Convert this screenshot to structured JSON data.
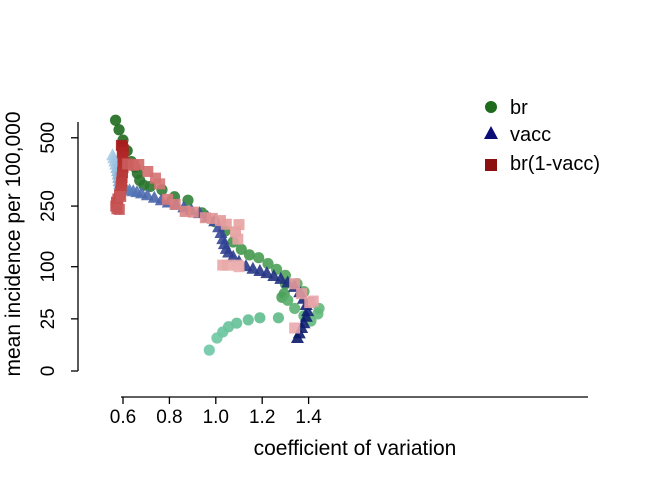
{
  "chart_data": {
    "type": "scatter",
    "xlabel": "coefficient of variation",
    "ylabel": "mean incidence per 100,000",
    "xlim": [
      0.52,
      1.46
    ],
    "y_scale": "sqrt",
    "ylim": [
      0,
      620
    ],
    "x_ticks": [
      {
        "value": 0.6,
        "label": "0.6"
      },
      {
        "value": 0.8,
        "label": "0.8"
      },
      {
        "value": 1.0,
        "label": "1.0"
      },
      {
        "value": 1.2,
        "label": "1.2"
      },
      {
        "value": 1.4,
        "label": "1.4"
      }
    ],
    "y_ticks": [
      {
        "value": 0,
        "label": "0"
      },
      {
        "value": 25,
        "label": "25"
      },
      {
        "value": 100,
        "label": "100"
      },
      {
        "value": 250,
        "label": "250"
      },
      {
        "value": 500,
        "label": "500"
      }
    ],
    "legend": {
      "placement": "top-right"
    },
    "grid": false,
    "series": [
      {
        "name": "br",
        "marker": "circle",
        "legend_color": "#1e6b1e",
        "points": [
          {
            "x": 0.568,
            "y": 578,
            "c": "#1e6b1e"
          },
          {
            "x": 0.583,
            "y": 535,
            "c": "#1e6b1e"
          },
          {
            "x": 0.6,
            "y": 490,
            "c": "#1e6b1e"
          },
          {
            "x": 0.618,
            "y": 446,
            "c": "#1e6b1e"
          },
          {
            "x": 0.636,
            "y": 403,
            "c": "#226f22"
          },
          {
            "x": 0.652,
            "y": 382,
            "c": "#226f22"
          },
          {
            "x": 0.662,
            "y": 359,
            "c": "#266f26"
          },
          {
            "x": 0.672,
            "y": 334,
            "c": "#2a732a"
          },
          {
            "x": 0.69,
            "y": 317,
            "c": "#2a752f"
          },
          {
            "x": 0.718,
            "y": 313,
            "c": "#2d782f"
          },
          {
            "x": 0.768,
            "y": 302,
            "c": "#2f7c34"
          },
          {
            "x": 0.822,
            "y": 279,
            "c": "#318036"
          },
          {
            "x": 0.88,
            "y": 268,
            "c": "#338339"
          },
          {
            "x": 0.94,
            "y": 230,
            "c": "#36873c"
          },
          {
            "x": 0.995,
            "y": 205,
            "c": "#3a8d42"
          },
          {
            "x": 1.04,
            "y": 180,
            "c": "#3c9145"
          },
          {
            "x": 1.075,
            "y": 153,
            "c": "#3f9448"
          },
          {
            "x": 1.11,
            "y": 136,
            "c": "#42974b"
          },
          {
            "x": 1.145,
            "y": 124,
            "c": "#45994d"
          },
          {
            "x": 1.185,
            "y": 118,
            "c": "#489c51"
          },
          {
            "x": 1.225,
            "y": 106,
            "c": "#4b9f55"
          },
          {
            "x": 1.262,
            "y": 95,
            "c": "#4ea259"
          },
          {
            "x": 1.3,
            "y": 84,
            "c": "#52a55c"
          },
          {
            "x": 1.35,
            "y": 70,
            "c": "#55a860"
          },
          {
            "x": 1.38,
            "y": 58,
            "c": "#58ab63"
          },
          {
            "x": 1.3,
            "y": 70,
            "c": "#4aa05a"
          },
          {
            "x": 1.295,
            "y": 55,
            "c": "#4aa05a"
          },
          {
            "x": 1.285,
            "y": 50,
            "c": "#4aa05a"
          },
          {
            "x": 1.31,
            "y": 46,
            "c": "#56ad6a"
          },
          {
            "x": 1.34,
            "y": 36,
            "c": "#5cb272"
          },
          {
            "x": 1.38,
            "y": 28,
            "c": "#5fb577"
          },
          {
            "x": 1.41,
            "y": 23,
            "c": "#62b87c"
          },
          {
            "x": 1.44,
            "y": 30,
            "c": "#62b87c"
          },
          {
            "x": 1.445,
            "y": 36,
            "c": "#62b87c"
          },
          {
            "x": 1.27,
            "y": 26,
            "c": "#5fba88"
          },
          {
            "x": 1.19,
            "y": 26,
            "c": "#61bc8e"
          },
          {
            "x": 1.14,
            "y": 24,
            "c": "#63be92"
          },
          {
            "x": 1.09,
            "y": 21,
            "c": "#65c096"
          },
          {
            "x": 1.055,
            "y": 18,
            "c": "#67c29a"
          },
          {
            "x": 1.03,
            "y": 14,
            "c": "#6ac49e"
          },
          {
            "x": 1.005,
            "y": 10,
            "c": "#6cc6a2"
          },
          {
            "x": 0.972,
            "y": 4,
            "c": "#6ec8a6"
          }
        ]
      },
      {
        "name": "vacc",
        "marker": "triangle",
        "legend_color": "#0c0c78",
        "points": [
          {
            "x": 0.555,
            "y": 428,
            "c": "#a9cce6"
          },
          {
            "x": 0.56,
            "y": 416,
            "c": "#a5cae5"
          },
          {
            "x": 0.565,
            "y": 404,
            "c": "#a1c7e4"
          },
          {
            "x": 0.569,
            "y": 392,
            "c": "#9cc4e2"
          },
          {
            "x": 0.573,
            "y": 379,
            "c": "#97c0e0"
          },
          {
            "x": 0.576,
            "y": 367,
            "c": "#92bcde"
          },
          {
            "x": 0.579,
            "y": 355,
            "c": "#8cb7db"
          },
          {
            "x": 0.581,
            "y": 343,
            "c": "#86b2d8"
          },
          {
            "x": 0.583,
            "y": 331,
            "c": "#7faad4"
          },
          {
            "x": 0.586,
            "y": 321,
            "c": "#77a2cf"
          },
          {
            "x": 0.592,
            "y": 313,
            "c": "#6f98ca"
          },
          {
            "x": 0.602,
            "y": 308,
            "c": "#678fc5"
          },
          {
            "x": 0.614,
            "y": 304,
            "c": "#6187c0"
          },
          {
            "x": 0.628,
            "y": 300,
            "c": "#5b80bc"
          },
          {
            "x": 0.644,
            "y": 297,
            "c": "#5779b8"
          },
          {
            "x": 0.66,
            "y": 294,
            "c": "#5373b4"
          },
          {
            "x": 0.68,
            "y": 290,
            "c": "#506eb1"
          },
          {
            "x": 0.705,
            "y": 284,
            "c": "#4d69ae"
          },
          {
            "x": 0.735,
            "y": 276,
            "c": "#4a64ab"
          },
          {
            "x": 0.765,
            "y": 268,
            "c": "#4861a9"
          },
          {
            "x": 0.795,
            "y": 261,
            "c": "#465ea7"
          },
          {
            "x": 0.828,
            "y": 254,
            "c": "#445ba5"
          },
          {
            "x": 0.862,
            "y": 246,
            "c": "#4258a3"
          },
          {
            "x": 0.895,
            "y": 238,
            "c": "#4055a1"
          },
          {
            "x": 0.93,
            "y": 229,
            "c": "#3e529f"
          },
          {
            "x": 0.965,
            "y": 218,
            "c": "#3c4f9d"
          },
          {
            "x": 0.995,
            "y": 206,
            "c": "#3a4c9b"
          },
          {
            "x": 1.012,
            "y": 190,
            "c": "#384999"
          },
          {
            "x": 1.022,
            "y": 175,
            "c": "#364797"
          },
          {
            "x": 1.03,
            "y": 160,
            "c": "#344595"
          },
          {
            "x": 1.037,
            "y": 148,
            "c": "#324393"
          },
          {
            "x": 1.045,
            "y": 137,
            "c": "#314191"
          },
          {
            "x": 1.055,
            "y": 129,
            "c": "#2f3f8f"
          },
          {
            "x": 1.075,
            "y": 120,
            "c": "#2d3d8d"
          },
          {
            "x": 1.1,
            "y": 110,
            "c": "#2b3b8b"
          },
          {
            "x": 1.13,
            "y": 101,
            "c": "#293989"
          },
          {
            "x": 1.16,
            "y": 96,
            "c": "#273787"
          },
          {
            "x": 1.19,
            "y": 92,
            "c": "#253585"
          },
          {
            "x": 1.22,
            "y": 88,
            "c": "#233383"
          },
          {
            "x": 1.25,
            "y": 83,
            "c": "#213181"
          },
          {
            "x": 1.28,
            "y": 78,
            "c": "#1f2f7f"
          },
          {
            "x": 1.31,
            "y": 72,
            "c": "#1d2d7d"
          },
          {
            "x": 1.34,
            "y": 65,
            "c": "#1b2b7b"
          },
          {
            "x": 1.362,
            "y": 57,
            "c": "#192979"
          },
          {
            "x": 1.378,
            "y": 48,
            "c": "#172777"
          },
          {
            "x": 1.39,
            "y": 40,
            "c": "#152575"
          },
          {
            "x": 1.396,
            "y": 33,
            "c": "#132373"
          },
          {
            "x": 1.39,
            "y": 27,
            "c": "#112171"
          },
          {
            "x": 1.38,
            "y": 21,
            "c": "#0f1f6f"
          },
          {
            "x": 1.37,
            "y": 17,
            "c": "#0d1d6d"
          },
          {
            "x": 1.36,
            "y": 13,
            "c": "#0b1b6b"
          },
          {
            "x": 1.352,
            "y": 10,
            "c": "#091969"
          }
        ]
      },
      {
        "name": "br(1-vacc)",
        "marker": "square",
        "legend_color": "#8c1010",
        "points": [
          {
            "x": 0.593,
            "y": 468,
            "c": "#a81b1b"
          },
          {
            "x": 0.598,
            "y": 460,
            "c": "#a81b1b"
          },
          {
            "x": 0.601,
            "y": 450,
            "c": "#ab2020"
          },
          {
            "x": 0.597,
            "y": 438,
            "c": "#ae2424"
          },
          {
            "x": 0.6,
            "y": 420,
            "c": "#b12828"
          },
          {
            "x": 0.601,
            "y": 400,
            "c": "#b32c2c"
          },
          {
            "x": 0.6,
            "y": 380,
            "c": "#b53030"
          },
          {
            "x": 0.598,
            "y": 362,
            "c": "#b73434"
          },
          {
            "x": 0.596,
            "y": 344,
            "c": "#b93838"
          },
          {
            "x": 0.594,
            "y": 327,
            "c": "#bb3c3c"
          },
          {
            "x": 0.592,
            "y": 312,
            "c": "#bd4040"
          },
          {
            "x": 0.59,
            "y": 298,
            "c": "#bf4343"
          },
          {
            "x": 0.585,
            "y": 286,
            "c": "#c14646"
          },
          {
            "x": 0.578,
            "y": 272,
            "c": "#c34949"
          },
          {
            "x": 0.572,
            "y": 262,
            "c": "#c44c4c"
          },
          {
            "x": 0.569,
            "y": 250,
            "c": "#c54f4f"
          },
          {
            "x": 0.574,
            "y": 242,
            "c": "#c65252"
          },
          {
            "x": 0.584,
            "y": 240,
            "c": "#c75555"
          },
          {
            "x": 0.59,
            "y": 280,
            "c": "#c85858"
          },
          {
            "x": 0.62,
            "y": 394,
            "c": "#cc5d5d"
          },
          {
            "x": 0.645,
            "y": 389,
            "c": "#ce6262"
          },
          {
            "x": 0.668,
            "y": 392,
            "c": "#d06767"
          },
          {
            "x": 0.707,
            "y": 366,
            "c": "#d26c6c"
          },
          {
            "x": 0.74,
            "y": 342,
            "c": "#d47171"
          },
          {
            "x": 0.758,
            "y": 322,
            "c": "#d67676"
          },
          {
            "x": 0.792,
            "y": 271,
            "c": "#d87b7b"
          },
          {
            "x": 0.825,
            "y": 255,
            "c": "#da8080"
          },
          {
            "x": 0.868,
            "y": 234,
            "c": "#dc8585"
          },
          {
            "x": 0.903,
            "y": 232,
            "c": "#de8a8a"
          },
          {
            "x": 0.955,
            "y": 216,
            "c": "#e08f8f"
          },
          {
            "x": 0.985,
            "y": 214,
            "c": "#e29494"
          },
          {
            "x": 1.02,
            "y": 208,
            "c": "#e49999"
          },
          {
            "x": 1.045,
            "y": 198,
            "c": "#e59b9b"
          },
          {
            "x": 1.085,
            "y": 178,
            "c": "#e69e9e"
          },
          {
            "x": 1.1,
            "y": 197,
            "c": "#e7a1a1"
          },
          {
            "x": 1.095,
            "y": 160,
            "c": "#e8a4a4"
          },
          {
            "x": 1.03,
            "y": 103,
            "c": "#e9a7a7"
          },
          {
            "x": 1.05,
            "y": 103,
            "c": "#eaaaaa"
          },
          {
            "x": 1.095,
            "y": 103,
            "c": "#ebadad"
          },
          {
            "x": 1.1,
            "y": 100,
            "c": "#ecb0b0"
          },
          {
            "x": 1.34,
            "y": 70,
            "c": "#e2989b"
          },
          {
            "x": 1.37,
            "y": 55,
            "c": "#e49ca0"
          },
          {
            "x": 1.405,
            "y": 43,
            "c": "#e6a0a4"
          },
          {
            "x": 1.42,
            "y": 45,
            "c": "#e8a4a8"
          },
          {
            "x": 1.34,
            "y": 17,
            "c": "#eaa8ac"
          }
        ]
      }
    ]
  }
}
